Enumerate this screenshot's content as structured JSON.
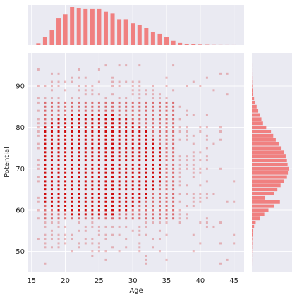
{
  "chart_data": {
    "type": "scatter",
    "subtype": "jointplot",
    "title": "",
    "xlabel": "Age",
    "ylabel": "Potential",
    "xlim": [
      14.5,
      46.5
    ],
    "ylim": [
      45,
      98
    ],
    "xticks": [
      15,
      20,
      25,
      30,
      35,
      40,
      45
    ],
    "yticks": [
      50,
      60,
      70,
      80,
      90
    ],
    "grid": true,
    "colors": {
      "panel_background": "#eaeaf2",
      "grid": "#ffffff",
      "marker": "#cc0000",
      "histogram": "#f08080"
    },
    "scatter_x_range": [
      16,
      45
    ],
    "scatter_y_range": [
      47,
      95
    ],
    "dense_region": {
      "x": [
        17,
        36
      ],
      "y": [
        58,
        86
      ]
    },
    "age_histogram": {
      "x": [
        16,
        17,
        18,
        19,
        20,
        21,
        22,
        23,
        24,
        25,
        26,
        27,
        28,
        29,
        30,
        31,
        32,
        33,
        34,
        35,
        36,
        37,
        38,
        39,
        40,
        41,
        42,
        43,
        44,
        45
      ],
      "counts": [
        60,
        250,
        470,
        850,
        980,
        1210,
        1180,
        1145,
        1145,
        1145,
        1060,
        1000,
        820,
        820,
        690,
        650,
        540,
        420,
        360,
        250,
        140,
        70,
        45,
        30,
        15,
        10,
        5,
        3,
        2,
        1
      ]
    },
    "potential_histogram": {
      "y": [
        47,
        48,
        49,
        50,
        51,
        52,
        53,
        54,
        55,
        56,
        57,
        58,
        59,
        60,
        61,
        62,
        63,
        64,
        65,
        66,
        67,
        68,
        69,
        70,
        71,
        72,
        73,
        74,
        75,
        76,
        77,
        78,
        79,
        80,
        81,
        82,
        83,
        84,
        85,
        86,
        87,
        88,
        89,
        90,
        91,
        92,
        93,
        94,
        95
      ],
      "counts": [
        1,
        2,
        3,
        5,
        8,
        12,
        15,
        25,
        45,
        70,
        120,
        260,
        390,
        520,
        700,
        880,
        420,
        700,
        800,
        900,
        1000,
        1100,
        1130,
        1150,
        1120,
        1100,
        1060,
        1000,
        930,
        840,
        750,
        670,
        600,
        450,
        350,
        300,
        260,
        200,
        150,
        100,
        70,
        45,
        30,
        15,
        8,
        4,
        2,
        1,
        1
      ]
    }
  }
}
